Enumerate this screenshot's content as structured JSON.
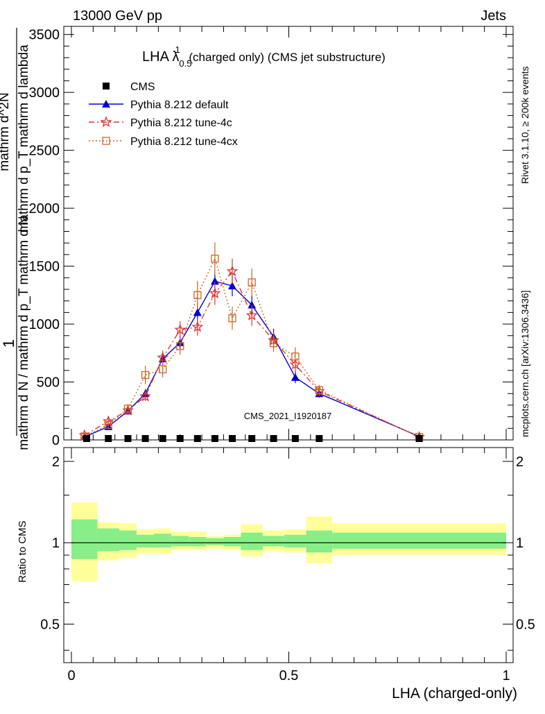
{
  "header": {
    "left": "13000 GeV pp",
    "right": "Jets"
  },
  "side_texts": {
    "rivet": "Rivet 3.1.10, ≥ 200k events",
    "mcplots": "mcplots.cern.ch [arXiv:1306.3436]"
  },
  "chart_data": {
    "type": "line",
    "title_main": "LHA λ",
    "title_sup": "1",
    "title_sub": "0.5",
    "title_rest": " (charged only) (CMS jet substructure)",
    "watermark": "CMS_2021_I1920187",
    "xlabel": "LHA (charged-only)",
    "ylabel_numerator": "1",
    "ylabel_denominator": "mathrm d N / mathrm d p_T mathrm d N",
    "ylabel_numer2": "mathrm d^2N",
    "ylabel_denom2": "mathrm d p_T mathrm d lambda",
    "xlim": [
      -0.02,
      1.02
    ],
    "ylim": [
      0,
      3570
    ],
    "xticks": [
      0,
      0.5,
      1
    ],
    "xtick_labels": [
      "0",
      "0.5",
      "1"
    ],
    "yticks": [
      0,
      500,
      1000,
      1500,
      2000,
      2500,
      3000,
      3500
    ],
    "ytick_labels": [
      "0",
      "500",
      "1000",
      "1500",
      "2000",
      "2500",
      "3000",
      "3500"
    ],
    "legend": [
      {
        "name": "CMS",
        "marker": "square"
      },
      {
        "name": "Pythia 8.212 default",
        "marker": "triangle"
      },
      {
        "name": "Pythia 8.212 tune-4c",
        "marker": "star"
      },
      {
        "name": "Pythia 8.212 tune-4cx",
        "marker": "open-square"
      }
    ],
    "cms": {
      "x": [
        0.035,
        0.085,
        0.13,
        0.17,
        0.21,
        0.25,
        0.29,
        0.33,
        0.37,
        0.415,
        0.465,
        0.515,
        0.57,
        0.8
      ],
      "y": [
        5,
        5,
        5,
        5,
        5,
        5,
        5,
        5,
        5,
        5,
        5,
        5,
        5,
        5
      ]
    },
    "series": [
      {
        "name": "Pythia 8.212 default",
        "color": "#0000cc",
        "x": [
          0.03,
          0.085,
          0.13,
          0.17,
          0.21,
          0.25,
          0.29,
          0.33,
          0.37,
          0.415,
          0.465,
          0.515,
          0.57,
          0.8
        ],
        "y": [
          25,
          115,
          250,
          400,
          700,
          840,
          1100,
          1370,
          1330,
          1165,
          890,
          540,
          400,
          30
        ],
        "err": [
          10,
          25,
          30,
          40,
          55,
          60,
          80,
          90,
          90,
          80,
          70,
          50,
          35,
          8
        ]
      },
      {
        "name": "Pythia 8.212 tune-4c",
        "color": "#dd3333",
        "x": [
          0.03,
          0.085,
          0.13,
          0.17,
          0.21,
          0.25,
          0.29,
          0.33,
          0.37,
          0.415,
          0.465,
          0.515,
          0.57,
          0.8
        ],
        "y": [
          40,
          160,
          255,
          375,
          710,
          950,
          975,
          1265,
          1455,
          1075,
          860,
          650,
          420,
          25
        ],
        "err": [
          15,
          35,
          35,
          40,
          60,
          75,
          75,
          100,
          110,
          90,
          70,
          60,
          40,
          8
        ]
      },
      {
        "name": "Pythia 8.212 tune-4cx",
        "color": "#cc6622",
        "x": [
          0.03,
          0.085,
          0.13,
          0.17,
          0.21,
          0.25,
          0.29,
          0.33,
          0.37,
          0.415,
          0.465,
          0.515,
          0.57,
          0.8
        ],
        "y": [
          30,
          130,
          270,
          560,
          610,
          810,
          1250,
          1565,
          1050,
          1360,
          835,
          720,
          430,
          25
        ],
        "err": [
          12,
          35,
          40,
          80,
          70,
          75,
          120,
          140,
          100,
          120,
          75,
          80,
          45,
          8
        ]
      }
    ],
    "ratio": {
      "ylabel": "Ratio to CMS",
      "ylim": [
        0.36,
        2.25
      ],
      "yticks": [
        0.5,
        1,
        2
      ],
      "ytick_labels": [
        "0.5",
        "1",
        "2"
      ],
      "bins": [
        {
          "lo": 0.0,
          "hi": 0.06,
          "inner": [
            0.87,
            1.22
          ],
          "outer": [
            0.72,
            1.41
          ]
        },
        {
          "lo": 0.06,
          "hi": 0.11,
          "inner": [
            0.93,
            1.13
          ],
          "outer": [
            0.86,
            1.19
          ]
        },
        {
          "lo": 0.11,
          "hi": 0.15,
          "inner": [
            0.94,
            1.11
          ],
          "outer": [
            0.88,
            1.18
          ]
        },
        {
          "lo": 0.15,
          "hi": 0.19,
          "inner": [
            0.96,
            1.07
          ],
          "outer": [
            0.91,
            1.12
          ]
        },
        {
          "lo": 0.19,
          "hi": 0.23,
          "inner": [
            0.96,
            1.08
          ],
          "outer": [
            0.91,
            1.13
          ]
        },
        {
          "lo": 0.23,
          "hi": 0.27,
          "inner": [
            0.97,
            1.06
          ],
          "outer": [
            0.94,
            1.1
          ]
        },
        {
          "lo": 0.27,
          "hi": 0.31,
          "inner": [
            0.97,
            1.05
          ],
          "outer": [
            0.94,
            1.1
          ]
        },
        {
          "lo": 0.31,
          "hi": 0.35,
          "inner": [
            0.98,
            1.04
          ],
          "outer": [
            0.95,
            1.06
          ]
        },
        {
          "lo": 0.35,
          "hi": 0.39,
          "inner": [
            0.97,
            1.05
          ],
          "outer": [
            0.94,
            1.07
          ]
        },
        {
          "lo": 0.39,
          "hi": 0.44,
          "inner": [
            0.94,
            1.09
          ],
          "outer": [
            0.89,
            1.17
          ]
        },
        {
          "lo": 0.44,
          "hi": 0.49,
          "inner": [
            0.97,
            1.06
          ],
          "outer": [
            0.93,
            1.11
          ]
        },
        {
          "lo": 0.49,
          "hi": 0.54,
          "inner": [
            0.96,
            1.07
          ],
          "outer": [
            0.92,
            1.12
          ]
        },
        {
          "lo": 0.54,
          "hi": 0.6,
          "inner": [
            0.92,
            1.11
          ],
          "outer": [
            0.84,
            1.25
          ]
        },
        {
          "lo": 0.6,
          "hi": 1.0,
          "inner": [
            0.95,
            1.09
          ],
          "outer": [
            0.9,
            1.18
          ]
        }
      ],
      "inner_color": "#88ee88",
      "outer_color": "#ffff99"
    }
  }
}
